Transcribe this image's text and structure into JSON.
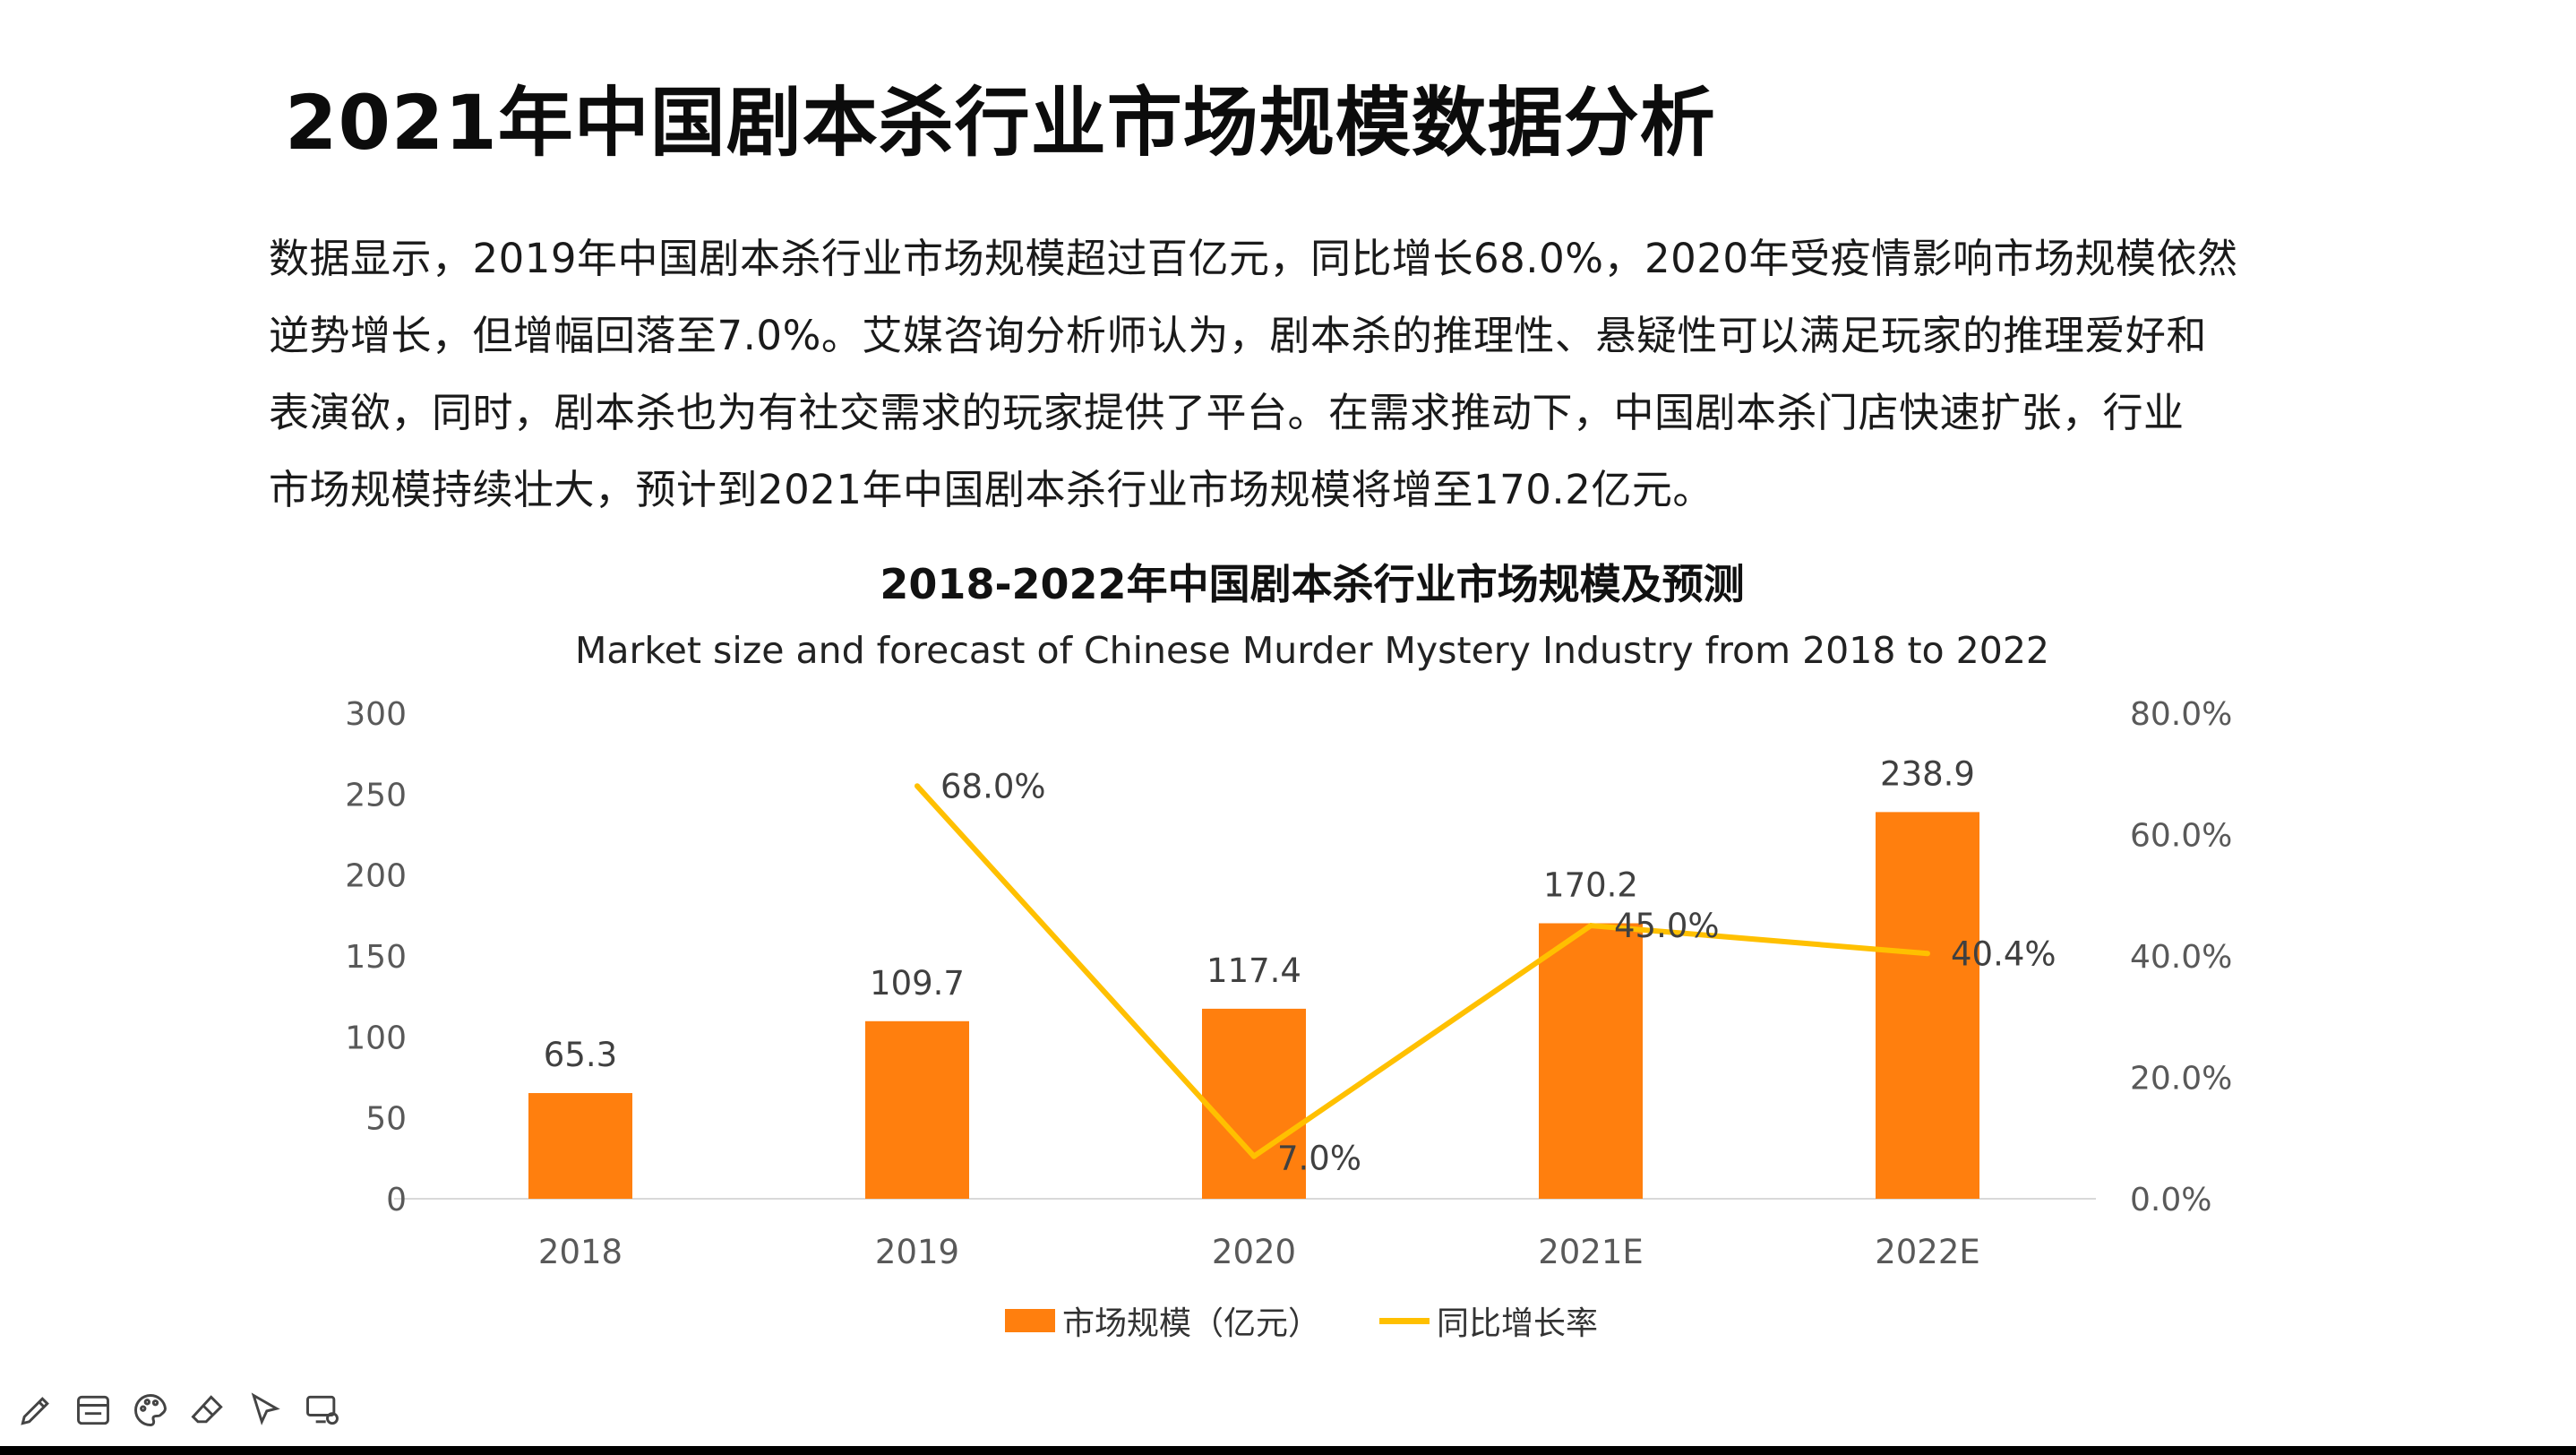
{
  "slide": {
    "title": "2021年中国剧本杀行业市场规模数据分析",
    "body_lines": [
      "数据显示，2019年中国剧本杀行业市场规模超过百亿元，同比增长68.0%，2020年受疫情影响市场规模依然",
      "逆势增长，但增幅回落至7.0%。艾媒咨询分析师认为，剧本杀的推理性、悬疑性可以满足玩家的推理爱好和",
      "表演欲，同时，剧本杀也为有社交需求的玩家提供了平台。在需求推动下，中国剧本杀门店快速扩张，行业",
      "市场规模持续壮大，预计到2021年中国剧本杀行业市场规模将增至170.2亿元。"
    ]
  },
  "chart_data": {
    "type": "bar",
    "title": "2018-2022年中国剧本杀行业市场规模及预测",
    "subtitle": "Market size and forecast of Chinese Murder Mystery Industry from 2018 to 2022",
    "categories": [
      "2018",
      "2019",
      "2020",
      "2021E",
      "2022E"
    ],
    "series": [
      {
        "name": "市场规模（亿元）",
        "type": "bar",
        "axis": "left",
        "color": "#ff7f0e",
        "values": [
          65.3,
          109.7,
          117.4,
          170.2,
          238.9
        ],
        "labels": [
          "65.3",
          "109.7",
          "117.4",
          "170.2",
          "238.9"
        ]
      },
      {
        "name": "同比增长率",
        "type": "line",
        "axis": "right",
        "color": "#ffc000",
        "values": [
          null,
          68.0,
          7.0,
          45.0,
          40.4
        ],
        "labels": [
          "",
          "68.0%",
          "7.0%",
          "45.0%",
          "40.4%"
        ]
      }
    ],
    "y_left": {
      "range": [
        0,
        300
      ],
      "ticks": [
        "0",
        "50",
        "100",
        "150",
        "200",
        "250",
        "300"
      ]
    },
    "y_right": {
      "range": [
        0,
        80
      ],
      "ticks": [
        "0.0%",
        "20.0%",
        "40.0%",
        "60.0%",
        "80.0%"
      ]
    },
    "grid": false,
    "legend": "bottom"
  },
  "toolbar": {
    "icons": [
      "pen-icon",
      "window-icon",
      "palette-icon",
      "eraser-icon",
      "pointer-icon",
      "screen-settings-icon"
    ]
  }
}
